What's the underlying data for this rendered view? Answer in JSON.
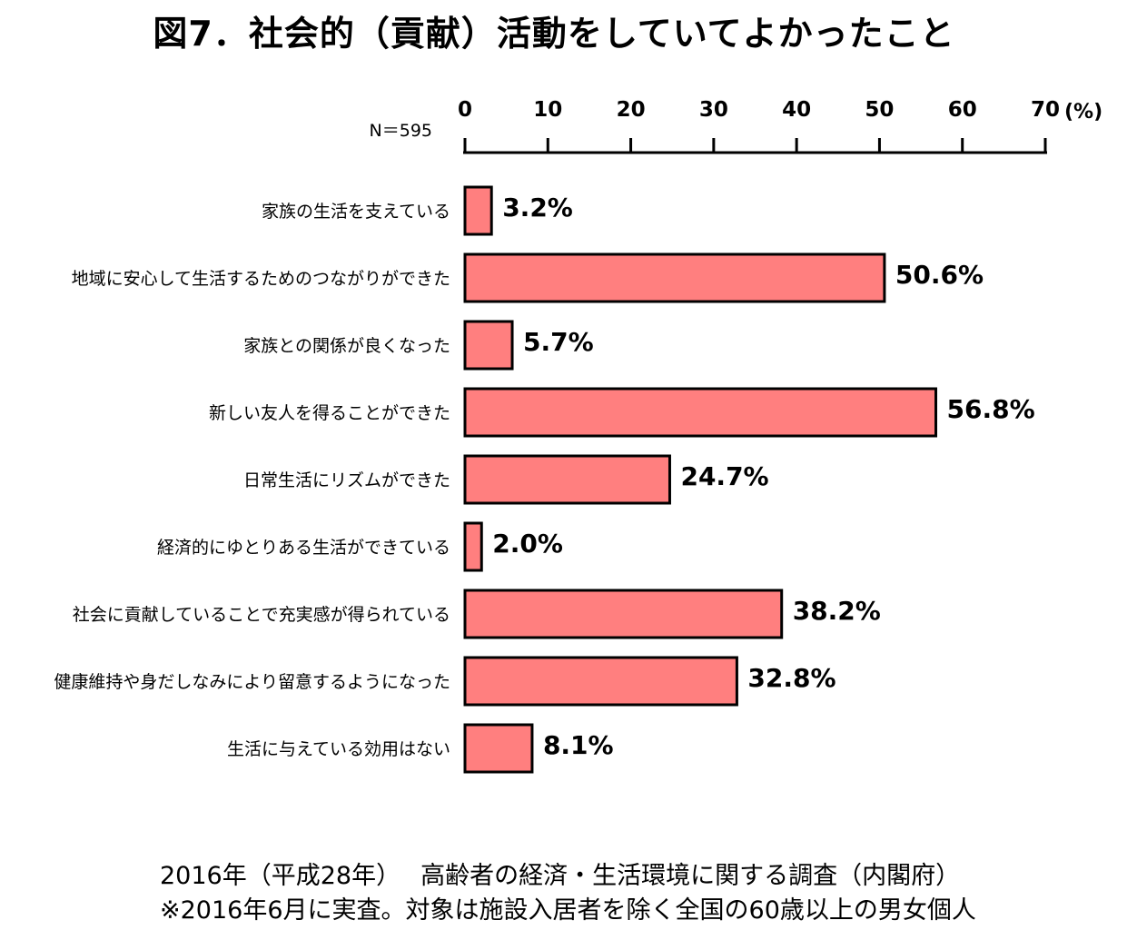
{
  "title": "図7．社会的（貢献）活動をしていてよかったこと",
  "sample_size": "N＝595",
  "unit": "(%)",
  "chart_data": {
    "type": "bar",
    "orientation": "horizontal",
    "title": "図7．社会的（貢献）活動をしていてよかったこと",
    "categories": [
      "家族の生活を支えている",
      "地域に安心して生活するためのつながりができた",
      "家族との関係が良くなった",
      "新しい友人を得ることができた",
      "日常生活にリズムができた",
      "経済的にゆとりある生活ができている",
      "社会に貢献していることで充実感が得られている",
      "健康維持や身だしなみにより留意するようになった",
      "生活に与えている効用はない"
    ],
    "values": [
      3.2,
      50.6,
      5.7,
      56.8,
      24.7,
      2.0,
      38.2,
      32.8,
      8.1
    ],
    "value_labels": [
      "3.2%",
      "50.6%",
      "5.7%",
      "56.8%",
      "24.7%",
      "2.0%",
      "38.2%",
      "32.8%",
      "8.1%"
    ],
    "xlim": [
      0,
      70
    ],
    "x_ticks": [
      0,
      10,
      20,
      30,
      40,
      50,
      60,
      70
    ],
    "axis_position": "top",
    "grid": false,
    "bar_color": "#ff7f7f",
    "bar_edge_color": "#000000"
  },
  "footer": {
    "line1": "2016年（平成28年）　 高齢者の経済・生活環境に関する調査（内閣府）",
    "line2": "※2016年6月に実査。対象は施設入居者を除く全国の60歳以上の男女個人"
  }
}
